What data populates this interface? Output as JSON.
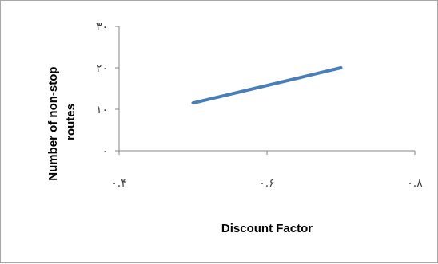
{
  "chart_data": {
    "type": "line",
    "title": "",
    "xlabel": "Discount Factor",
    "ylabel_lines": [
      "Number of non-stop",
      "routes"
    ],
    "xlim": [
      0.4,
      0.8
    ],
    "ylim": [
      0,
      30
    ],
    "x_ticks": [
      0.4,
      0.6,
      0.8
    ],
    "x_tick_labels": [
      "۰.۴",
      "۰.۶",
      "۰.۸"
    ],
    "y_ticks": [
      0,
      10,
      20,
      30
    ],
    "y_tick_labels": [
      "۰",
      "۱۰",
      "۲۰",
      "۳۰"
    ],
    "grid": false,
    "legend": "none",
    "series": [
      {
        "x": [
          0.5,
          0.7
        ],
        "y": [
          11.5,
          20
        ],
        "color": "#4a7ebb"
      }
    ],
    "colors": {
      "line": "#4a7ebb",
      "axis": "#868686",
      "frame": "#a6a6a6"
    }
  }
}
